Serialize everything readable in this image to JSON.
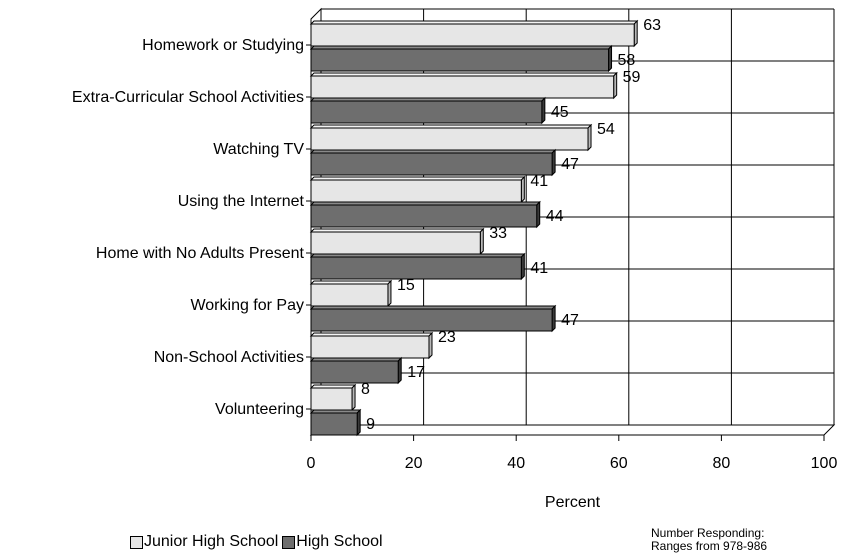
{
  "chart_data": {
    "type": "bar",
    "orientation": "horizontal",
    "categories": [
      "Homework or Studying",
      "Extra-Curricular School Activities",
      "Watching TV",
      "Using the Internet",
      "Home with No Adults Present",
      "Working for Pay",
      "Non-School Activities",
      "Volunteering"
    ],
    "series": [
      {
        "name": "Junior High School",
        "color": "#e6e6e6",
        "values": [
          63,
          59,
          54,
          41,
          33,
          15,
          23,
          8
        ]
      },
      {
        "name": "High School",
        "color": "#6e6e6e",
        "values": [
          58,
          45,
          47,
          44,
          41,
          47,
          17,
          9
        ]
      }
    ],
    "xlabel": "Percent",
    "xlim": [
      0,
      100
    ],
    "xticks": [
      0,
      20,
      40,
      60,
      80,
      100
    ],
    "grid": true,
    "legend_position": "bottom-left",
    "style": "3d"
  },
  "note": {
    "line1": "Number Responding:",
    "line2": "Ranges from 978-986"
  }
}
